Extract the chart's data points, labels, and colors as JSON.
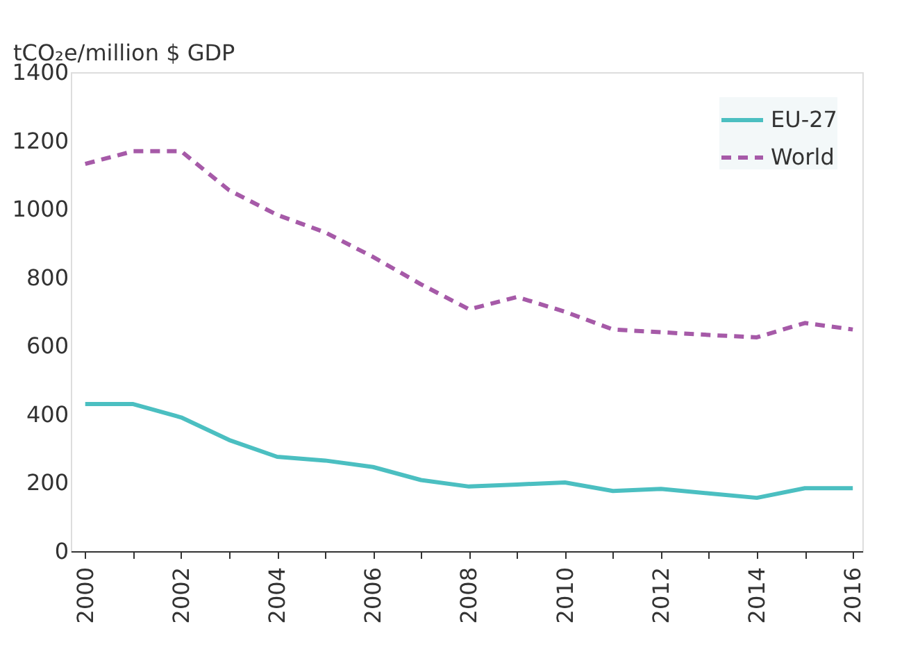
{
  "chart_data": {
    "type": "line",
    "ylabel": "tCO₂e/million $ GDP",
    "categories": [
      "2000",
      null,
      "2002",
      null,
      "2004",
      null,
      "2006",
      null,
      "2008",
      null,
      "2010",
      null,
      "2012",
      null,
      "2014",
      null,
      "2016"
    ],
    "series": [
      {
        "name": "EU-27",
        "color": "#4bbfc1",
        "line_style": "solid",
        "values": [
          430,
          430,
          391,
          325,
          276,
          265,
          246,
          208,
          189,
          195,
          201,
          176,
          182,
          169,
          156,
          184,
          184
        ]
      },
      {
        "name": "World",
        "color": "#a65aa8",
        "line_style": "dashed",
        "values": [
          1132,
          1169,
          1169,
          1055,
          983,
          932,
          860,
          780,
          707,
          743,
          700,
          648,
          640,
          632,
          625,
          667,
          648
        ]
      }
    ],
    "ylim": [
      0,
      1400
    ],
    "yticks": [
      0,
      200,
      400,
      600,
      800,
      1000,
      1200,
      1400
    ],
    "grid": false,
    "legend": "top right"
  }
}
